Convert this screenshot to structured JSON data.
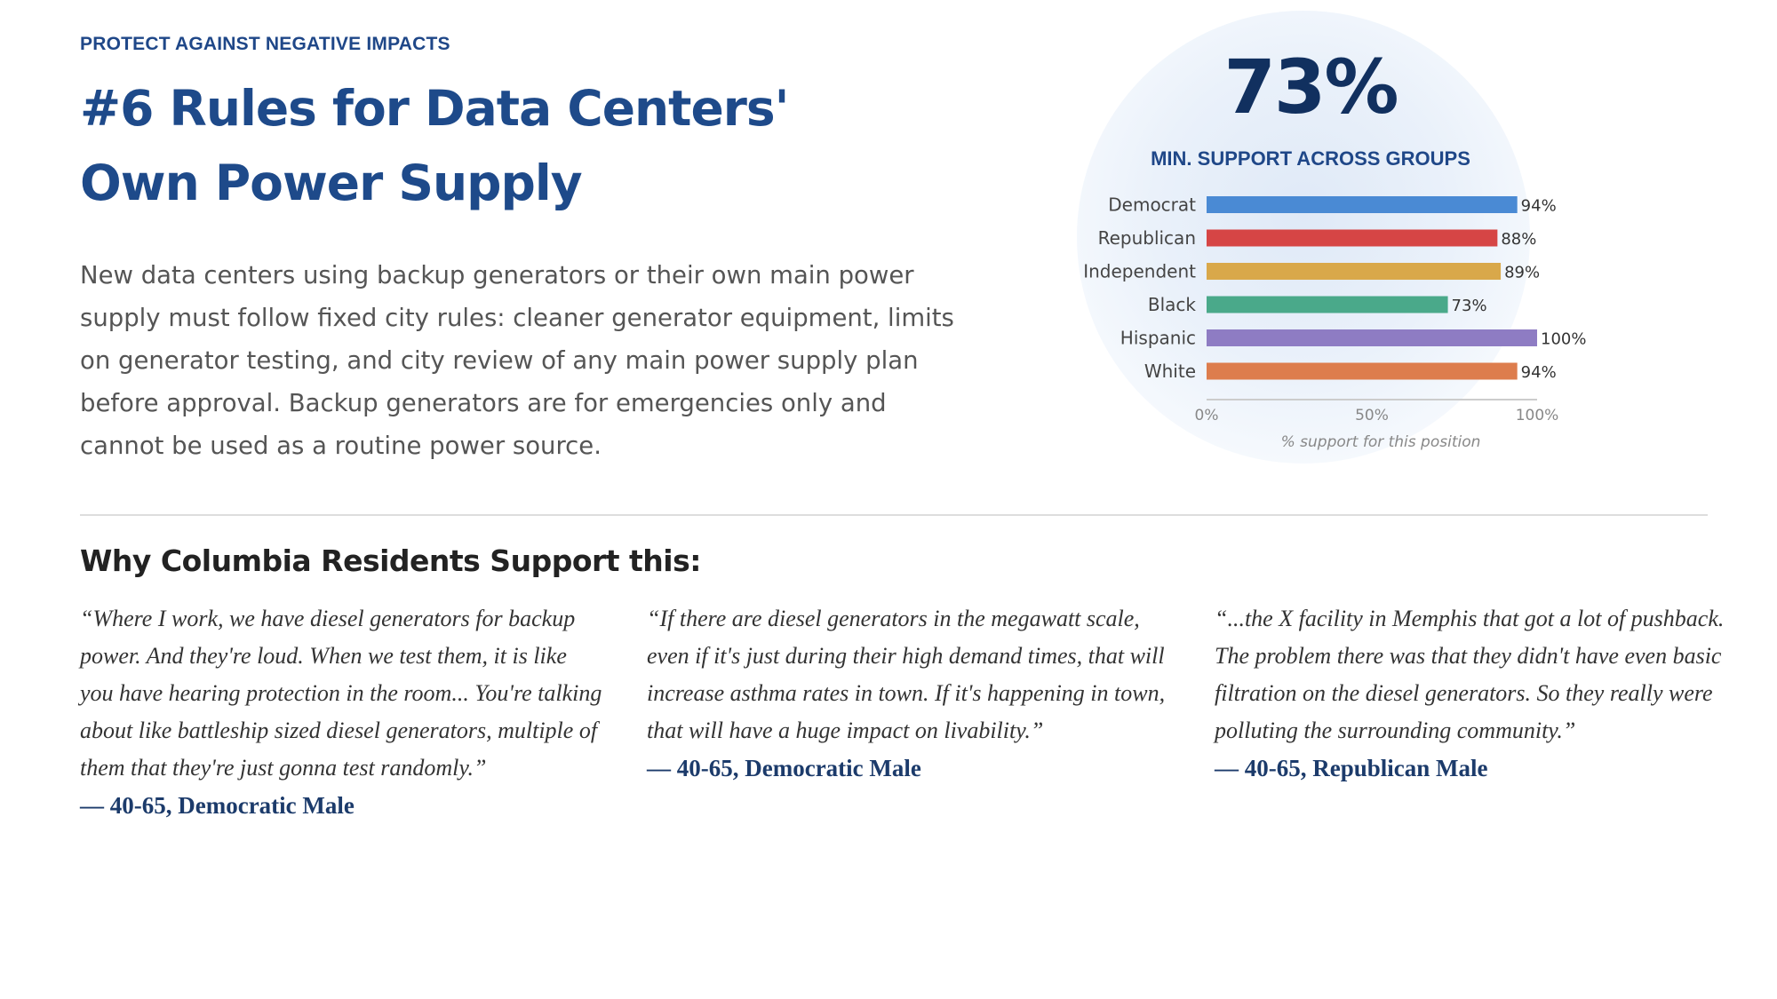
{
  "eyebrow": "PROTECT AGAINST NEGATIVE IMPACTS",
  "title": "#6 Rules for Data Centers' Own Power Supply",
  "description": "New data centers using backup generators or their own main power supply must follow fixed city rules: cleaner generator equipment, limits on generator testing, and city review of any main power supply plan before approval. Backup generators are for emergencies only and cannot be used as a routine power source.",
  "headline_stat": {
    "value": "73%",
    "label": "MIN. SUPPORT ACROSS GROUPS"
  },
  "chart_data": {
    "type": "bar",
    "orientation": "horizontal",
    "categories": [
      "Democrat",
      "Republican",
      "Independent",
      "Black",
      "Hispanic",
      "White"
    ],
    "values": [
      94,
      88,
      89,
      73,
      100,
      94
    ],
    "value_labels": [
      "94%",
      "88%",
      "89%",
      "73%",
      "100%",
      "94%"
    ],
    "colors": [
      "#4a8ad4",
      "#d64545",
      "#d9a84a",
      "#4aa98a",
      "#8e7cc3",
      "#dd7d4d"
    ],
    "xlim": [
      0,
      100
    ],
    "xticks": [
      0,
      50,
      100
    ],
    "xtick_labels": [
      "0%",
      "50%",
      "100%"
    ],
    "xlabel": "% support for this position",
    "ylabel": "",
    "title": "",
    "grid": false
  },
  "why": {
    "heading": "Why Columbia Residents Support this:",
    "quotes": [
      {
        "text": "“Where I work, we have diesel generators for backup power. And they're loud. When we test them, it is like you have hearing protection in the room... You're talking about like battleship sized diesel generators, multiple of them that they're just gonna test randomly.”",
        "attribution": "— 40-65, Democratic Male"
      },
      {
        "text": "“If there are diesel generators in the megawatt scale, even if it's just during their high demand times, that will increase asthma rates in town. If it's happening in town, that will have a huge impact on livability.”",
        "attribution": "— 40-65, Democratic Male"
      },
      {
        "text": "“...the X facility in Memphis that got a lot of pushback. The problem there was that they didn't have even basic filtration on the diesel generators. So they really were polluting the surrounding community.”",
        "attribution": "— 40-65, Republican Male"
      }
    ]
  }
}
